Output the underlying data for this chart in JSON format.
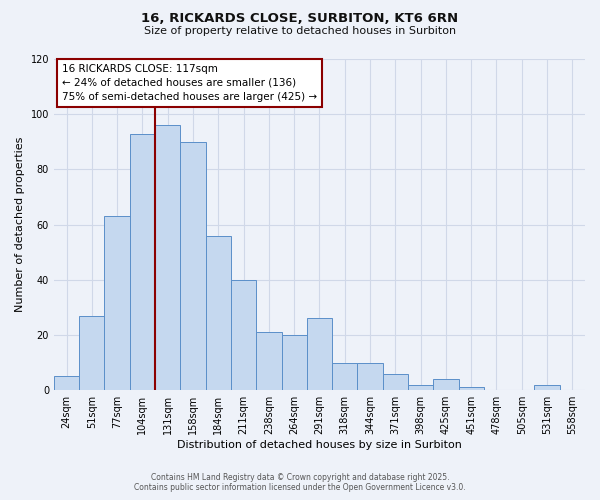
{
  "title": "16, RICKARDS CLOSE, SURBITON, KT6 6RN",
  "subtitle": "Size of property relative to detached houses in Surbiton",
  "xlabel": "Distribution of detached houses by size in Surbiton",
  "ylabel": "Number of detached properties",
  "categories": [
    "24sqm",
    "51sqm",
    "77sqm",
    "104sqm",
    "131sqm",
    "158sqm",
    "184sqm",
    "211sqm",
    "238sqm",
    "264sqm",
    "291sqm",
    "318sqm",
    "344sqm",
    "371sqm",
    "398sqm",
    "425sqm",
    "451sqm",
    "478sqm",
    "505sqm",
    "531sqm",
    "558sqm"
  ],
  "values": [
    5,
    27,
    63,
    93,
    96,
    90,
    56,
    40,
    21,
    20,
    26,
    10,
    10,
    6,
    2,
    4,
    1,
    0,
    0,
    2,
    0
  ],
  "bar_color": "#c5d8ef",
  "bar_edge_color": "#5b8fc9",
  "ylim": [
    0,
    120
  ],
  "yticks": [
    0,
    20,
    40,
    60,
    80,
    100,
    120
  ],
  "annotation_title": "16 RICKARDS CLOSE: 117sqm",
  "annotation_line1": "← 24% of detached houses are smaller (136)",
  "annotation_line2": "75% of semi-detached houses are larger (425) →",
  "footer1": "Contains HM Land Registry data © Crown copyright and database right 2025.",
  "footer2": "Contains public sector information licensed under the Open Government Licence v3.0.",
  "bg_color": "#eef2f9",
  "grid_color": "#d0d8e8",
  "line_color": "#8b0000",
  "annotation_box_color": "#8b0000",
  "title_fontsize": 9.5,
  "subtitle_fontsize": 8,
  "axis_label_fontsize": 8,
  "tick_fontsize": 7,
  "annotation_fontsize": 7.5,
  "footer_fontsize": 5.5,
  "red_line_x": 3.48
}
